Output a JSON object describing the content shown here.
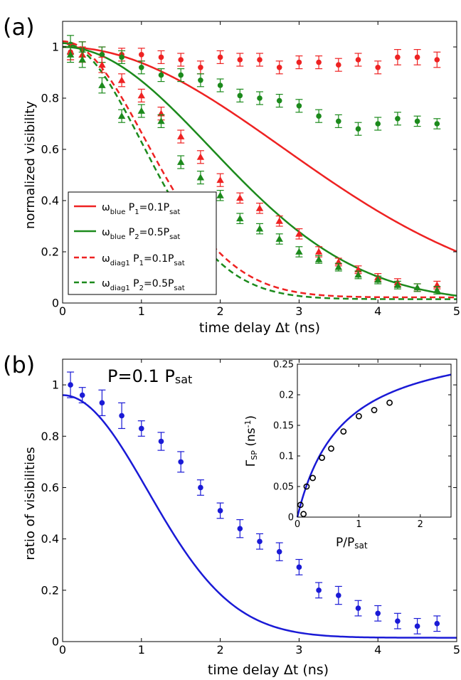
{
  "colors": {
    "red": "#ee2222",
    "green": "#1c8a1c",
    "blue": "#1a1ad6"
  },
  "chart_data": [
    {
      "type": "scatter",
      "panel_label": "(a)",
      "xlabel": "time delay Δt (ns)",
      "ylabel": "normalized visibility",
      "xlim": [
        0,
        5
      ],
      "ylim": [
        0,
        1.1
      ],
      "xticks": [
        0,
        1,
        2,
        3,
        4,
        5
      ],
      "yticks": [
        0,
        0.2,
        0.4,
        0.6,
        0.8,
        1
      ],
      "legend": {
        "placement": "bottom-left",
        "entries": [
          {
            "base": "ω",
            "sub1": "blue",
            "mid": " P",
            "sub2": "1",
            "tail": "=0.1P",
            "sub3": "sat",
            "style": "solid",
            "color": "red"
          },
          {
            "base": "ω",
            "sub1": "blue",
            "mid": " P",
            "sub2": "2",
            "tail": "=0.5P",
            "sub3": "sat",
            "style": "solid",
            "color": "green"
          },
          {
            "base": "ω",
            "sub1": "diag1",
            "mid": " P",
            "sub2": "1",
            "tail": "=0.1P",
            "sub3": "sat",
            "style": "dashed",
            "color": "red"
          },
          {
            "base": "ω",
            "sub1": "diag1",
            "mid": " P",
            "sub2": "2",
            "tail": "=0.5P",
            "sub3": "sat",
            "style": "dashed",
            "color": "green"
          }
        ]
      },
      "curves": [
        {
          "color": "red",
          "style": "solid",
          "kind": "gauss",
          "a": 1.0,
          "s": 15.6,
          "c": 0
        },
        {
          "color": "green",
          "style": "solid",
          "kind": "gauss",
          "a": 1.0,
          "s": 7.03,
          "c": 0
        },
        {
          "color": "red",
          "style": "dashed",
          "kind": "gauss",
          "a": 1.0,
          "s": 2.27,
          "c": 0.022
        },
        {
          "color": "green",
          "style": "dashed",
          "kind": "gauss",
          "a": 1.0,
          "s": 2.05,
          "c": 0.015
        }
      ],
      "series": [
        {
          "color": "red",
          "marker": "circle",
          "x": [
            0.1,
            0.25,
            0.5,
            0.75,
            1.0,
            1.25,
            1.5,
            1.75,
            2.0,
            2.25,
            2.5,
            2.75,
            3.0,
            3.25,
            3.5,
            3.75,
            4.0,
            4.25,
            4.5,
            4.75
          ],
          "y": [
            0.98,
            0.99,
            0.97,
            0.97,
            0.97,
            0.96,
            0.95,
            0.92,
            0.96,
            0.95,
            0.95,
            0.92,
            0.94,
            0.94,
            0.93,
            0.95,
            0.92,
            0.96,
            0.96,
            0.95
          ],
          "err": [
            0.03,
            0.03,
            0.03,
            0.025,
            0.025,
            0.025,
            0.025,
            0.025,
            0.025,
            0.025,
            0.025,
            0.025,
            0.025,
            0.025,
            0.025,
            0.025,
            0.025,
            0.03,
            0.03,
            0.03
          ]
        },
        {
          "color": "green",
          "marker": "circle",
          "x": [
            0.1,
            0.25,
            0.5,
            0.75,
            1.0,
            1.25,
            1.5,
            1.75,
            2.0,
            2.25,
            2.5,
            2.75,
            3.0,
            3.25,
            3.5,
            3.75,
            4.0,
            4.25,
            4.5,
            4.75
          ],
          "y": [
            1.01,
            0.99,
            0.97,
            0.96,
            0.92,
            0.89,
            0.89,
            0.87,
            0.85,
            0.81,
            0.8,
            0.79,
            0.77,
            0.73,
            0.71,
            0.68,
            0.7,
            0.72,
            0.71,
            0.7
          ],
          "err": [
            0.035,
            0.03,
            0.03,
            0.025,
            0.025,
            0.025,
            0.025,
            0.025,
            0.025,
            0.025,
            0.025,
            0.025,
            0.025,
            0.025,
            0.025,
            0.025,
            0.025,
            0.025,
            0.02,
            0.02
          ]
        },
        {
          "color": "red",
          "marker": "triangle",
          "x": [
            0.1,
            0.25,
            0.5,
            0.75,
            1.0,
            1.25,
            1.5,
            1.75,
            2.0,
            2.25,
            2.5,
            2.75,
            3.0,
            3.25,
            3.5,
            3.75,
            4.0,
            4.25,
            4.5,
            4.75
          ],
          "y": [
            0.98,
            0.97,
            0.93,
            0.87,
            0.81,
            0.74,
            0.65,
            0.57,
            0.48,
            0.41,
            0.37,
            0.32,
            0.27,
            0.2,
            0.16,
            0.13,
            0.1,
            0.08,
            0.06,
            0.07
          ],
          "err": [
            0.03,
            0.03,
            0.03,
            0.025,
            0.025,
            0.025,
            0.025,
            0.025,
            0.025,
            0.02,
            0.02,
            0.02,
            0.02,
            0.02,
            0.015,
            0.015,
            0.015,
            0.015,
            0.015,
            0.015
          ]
        },
        {
          "color": "green",
          "marker": "triangle",
          "x": [
            0.1,
            0.25,
            0.5,
            0.75,
            1.0,
            1.25,
            1.5,
            1.75,
            2.0,
            2.25,
            2.5,
            2.75,
            3.0,
            3.25,
            3.5,
            3.75,
            4.0,
            4.25,
            4.5,
            4.75
          ],
          "y": [
            0.97,
            0.95,
            0.85,
            0.73,
            0.75,
            0.71,
            0.55,
            0.49,
            0.42,
            0.33,
            0.29,
            0.25,
            0.2,
            0.17,
            0.14,
            0.11,
            0.09,
            0.07,
            0.06,
            0.05
          ],
          "err": [
            0.03,
            0.03,
            0.03,
            0.025,
            0.025,
            0.025,
            0.025,
            0.025,
            0.02,
            0.02,
            0.02,
            0.02,
            0.02,
            0.015,
            0.015,
            0.015,
            0.015,
            0.015,
            0.015,
            0.015
          ]
        }
      ]
    },
    {
      "type": "scatter",
      "panel_label": "(b)",
      "annotation": {
        "main": "P=0.1 P",
        "sub": "sat"
      },
      "xlabel": "time delay Δt (ns)",
      "ylabel": "ratio of visibilities",
      "xlim": [
        0,
        5
      ],
      "ylim": [
        0,
        1.1
      ],
      "xticks": [
        0,
        1,
        2,
        3,
        4,
        5
      ],
      "yticks": [
        0,
        0.2,
        0.4,
        0.6,
        0.8,
        1
      ],
      "curves": [
        {
          "color": "blue",
          "style": "solid",
          "kind": "gauss",
          "a": 0.945,
          "s": 2.33,
          "c": 0.015
        }
      ],
      "series": [
        {
          "color": "blue",
          "marker": "circle",
          "x": [
            0.1,
            0.25,
            0.5,
            0.75,
            1.0,
            1.25,
            1.5,
            1.75,
            2.0,
            2.25,
            2.5,
            2.75,
            3.0,
            3.25,
            3.5,
            3.75,
            4.0,
            4.25,
            4.5,
            4.75
          ],
          "y": [
            1.0,
            0.96,
            0.93,
            0.88,
            0.83,
            0.78,
            0.7,
            0.6,
            0.51,
            0.44,
            0.39,
            0.35,
            0.29,
            0.2,
            0.18,
            0.13,
            0.11,
            0.08,
            0.06,
            0.07
          ],
          "err": [
            0.05,
            0.03,
            0.05,
            0.05,
            0.03,
            0.035,
            0.04,
            0.03,
            0.03,
            0.035,
            0.03,
            0.035,
            0.03,
            0.03,
            0.035,
            0.03,
            0.03,
            0.03,
            0.03,
            0.03
          ]
        }
      ]
    },
    {
      "type": "scatter",
      "role": "inset",
      "xlabel_main": "P/P",
      "xlabel_sub": "sat",
      "ylabel_main": "Γ",
      "ylabel_sub": "SP",
      "ylabel_unit": " (ns",
      "ylabel_sup": "-1",
      "ylabel_close": ")",
      "xlim": [
        0,
        2.5
      ],
      "ylim": [
        0,
        0.25
      ],
      "xticks": [
        0,
        1,
        2
      ],
      "yticks": [
        0,
        0.05,
        0.1,
        0.15,
        0.2,
        0.25
      ],
      "curves": [
        {
          "color": "blue",
          "style": "solid",
          "kind": "sat",
          "a": 0.3,
          "k": 0.72
        }
      ],
      "series": [
        {
          "color": "black",
          "marker": "open-circle",
          "x": [
            0.05,
            0.1,
            0.15,
            0.25,
            0.4,
            0.55,
            0.75,
            1.0,
            1.25,
            1.5
          ],
          "y": [
            0.02,
            0.005,
            0.05,
            0.064,
            0.097,
            0.112,
            0.14,
            0.165,
            0.175,
            0.187
          ]
        }
      ]
    }
  ]
}
